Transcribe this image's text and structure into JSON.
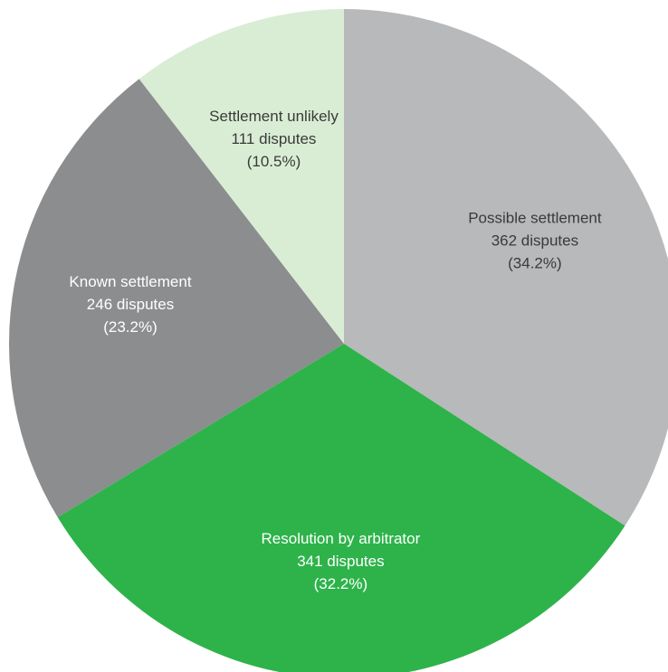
{
  "chart_data": {
    "type": "pie",
    "title": "",
    "slices": [
      {
        "label": "Possible settlement",
        "count_label": "362 disputes",
        "pct_label": "(34.2%)",
        "value": 362,
        "color": "#b8b9bb",
        "text_color": "#3a3a3a"
      },
      {
        "label": "Resolution by arbitrator",
        "count_label": "341 disputes",
        "pct_label": "(32.2%)",
        "value": 341,
        "color": "#2db34a",
        "text_color": "#ffffff"
      },
      {
        "label": "Known settlement",
        "count_label": "246 disputes",
        "pct_label": "(23.2%)",
        "value": 246,
        "color": "#8c8d8f",
        "text_color": "#ffffff"
      },
      {
        "label": "Settlement unlikely",
        "count_label": "111 disputes",
        "pct_label": "(10.5%)",
        "value": 111,
        "color": "#d9edd4",
        "text_color": "#3a3a3a"
      }
    ]
  }
}
